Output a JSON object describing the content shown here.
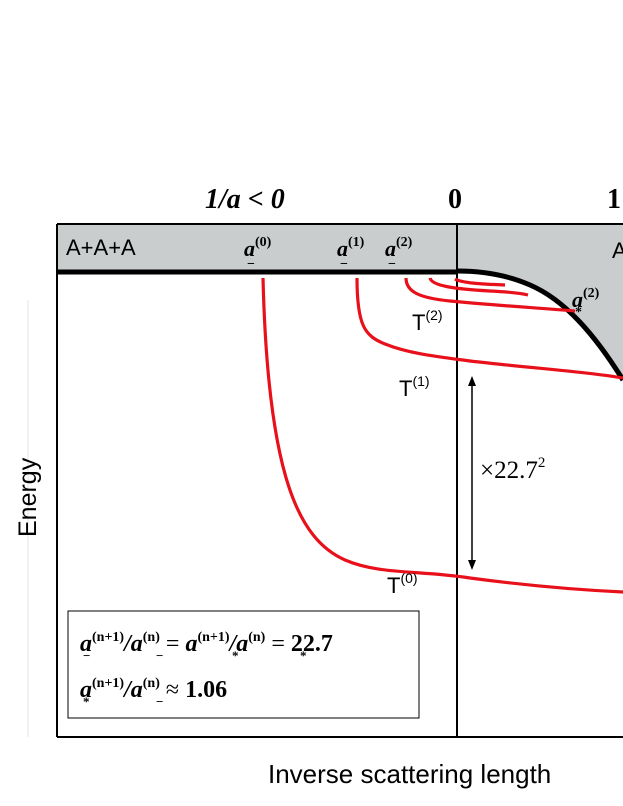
{
  "top_axis": {
    "left_label": "1/a < 0",
    "zero_label": "0",
    "right_label_partial": "1"
  },
  "continuum_band": {
    "left_text": "A+A+A",
    "right_text_partial": "A",
    "thresholds": {
      "a0": {
        "base": "a",
        "sub": "−",
        "sup": "(0)"
      },
      "a1": {
        "base": "a",
        "sub": "−",
        "sup": "(1)"
      },
      "a2": {
        "base": "a",
        "sub": "−",
        "sup": "(2)"
      }
    },
    "star_threshold": {
      "base": "a",
      "sub": "*",
      "sup": "(2)"
    }
  },
  "trimer_labels": {
    "t2": {
      "base": "T",
      "sup": "(2)"
    },
    "t1": {
      "base": "T",
      "sup": "(1)"
    },
    "t0": {
      "base": "T",
      "sup": "(0)"
    }
  },
  "ratio_annotation": {
    "prefix": "×22.7",
    "sup": "2"
  },
  "axis_labels": {
    "y": "Energy",
    "x": "Inverse scattering length"
  },
  "formula_box": {
    "line1": {
      "t1": {
        "base": "a",
        "sub": "−",
        "sup": "(n+1)"
      },
      "t2": {
        "base": "a",
        "sub": "−",
        "sup": "(n)"
      },
      "t3": {
        "base": "a",
        "sub": "*",
        "sup": "(n+1)"
      },
      "t4": {
        "base": "a",
        "sub": "*",
        "sup": "(n)"
      },
      "value": "22.7"
    },
    "line2": {
      "t1": {
        "base": "a",
        "sub": "*",
        "sup": "(n+1)"
      },
      "t2": {
        "base": "a",
        "sub": "−",
        "sup": "(n)"
      },
      "value": "1.06"
    }
  },
  "colors": {
    "band_fill": "#c9cdcd",
    "curve": "#e8101a",
    "ink": "#000000",
    "frame": "#000000"
  }
}
